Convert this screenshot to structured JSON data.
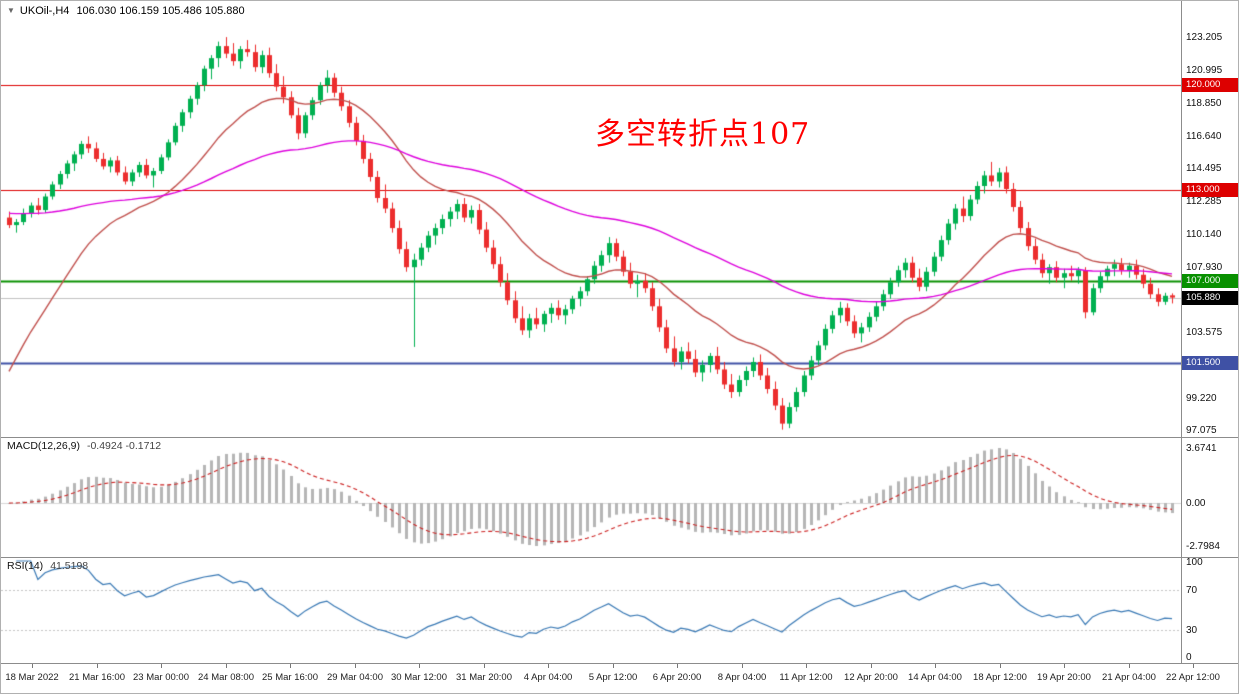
{
  "icons": {
    "collapse": "▼"
  },
  "chart_data": {
    "type": "candlestick",
    "title": "UKOil-,H4",
    "ohlc_label": "106.030 106.159 105.486 105.880",
    "ohlc_current": {
      "open": 106.03,
      "high": 106.159,
      "low": 105.486,
      "close": 105.88
    },
    "ylim": [
      96.61,
      125.6
    ],
    "up_color": "#00b050",
    "down_color": "#ec2d2d",
    "y_tick_labels": [
      "123.205",
      "120.995",
      "118.850",
      "116.640",
      "114.495",
      "112.285",
      "110.140",
      "107.930",
      "103.575",
      "99.220",
      "97.075"
    ],
    "x_tick_labels": [
      "18 Mar 2022",
      "21 Mar 16:00",
      "23 Mar 00:00",
      "24 Mar 08:00",
      "25 Mar 16:00",
      "29 Mar 04:00",
      "30 Mar 12:00",
      "31 Mar 20:00",
      "4 Apr 04:00",
      "5 Apr 12:00",
      "6 Apr 20:00",
      "8 Apr 04:00",
      "11 Apr 12:00",
      "12 Apr 20:00",
      "14 Apr 04:00",
      "18 Apr 12:00",
      "19 Apr 20:00",
      "21 Apr 04:00",
      "22 Apr 12:00"
    ],
    "horizontal_lines": [
      {
        "price": 120.0,
        "label": "120.000",
        "color": "#dd0000",
        "width": 1
      },
      {
        "price": 113.0,
        "label": "113.000",
        "color": "#dd0000",
        "width": 1
      },
      {
        "price": 107.0,
        "label": "107.000",
        "color": "#089000",
        "width": 2
      },
      {
        "price": 101.5,
        "label": "101.500",
        "color": "#3f51a5",
        "width": 2
      }
    ],
    "current_price": {
      "price": 105.88,
      "label": "105.880",
      "color": "#000000"
    },
    "moving_averages": [
      {
        "name": "fast-ma",
        "period": 21,
        "seed": 100.0,
        "color": "#c0504d"
      },
      {
        "name": "slow-ma",
        "period": 72,
        "seed": 111.5,
        "color": "#dd00dd"
      }
    ],
    "annotation": {
      "text": "多空转折点107",
      "color": "#ff0000"
    },
    "indicators": [
      {
        "type": "MACD",
        "label": "MACD(12,26,9)",
        "values_label": "-0.4924 -0.1712",
        "fast": 12,
        "slow": 26,
        "signal": 9,
        "hist_color": "#b6b6b6",
        "signal_color": "#cc2222",
        "y_tick_labels": [
          {
            "v": 3.6741,
            "label": "3.6741"
          },
          {
            "v": 0,
            "label": "0.00"
          },
          {
            "v": -2.7984,
            "label": "-2.7984"
          }
        ]
      },
      {
        "type": "RSI",
        "label": "RSI(14)",
        "value_label": "41.5198",
        "period": 14,
        "levels": [
          70,
          30
        ],
        "line_color": "#3878b4",
        "y_tick_labels": [
          {
            "v": 100,
            "label": "100"
          },
          {
            "v": 70,
            "label": "70"
          },
          {
            "v": 30,
            "label": "30"
          },
          {
            "v": 0,
            "label": "0"
          }
        ]
      }
    ],
    "candles": [
      [
        111.2,
        111.6,
        110.5,
        110.7
      ],
      [
        110.7,
        111.1,
        110.2,
        110.9
      ],
      [
        110.9,
        111.8,
        110.7,
        111.5
      ],
      [
        111.5,
        112.2,
        111.2,
        112.0
      ],
      [
        112.0,
        112.5,
        111.4,
        111.7
      ],
      [
        111.7,
        112.8,
        111.5,
        112.6
      ],
      [
        112.6,
        113.6,
        112.4,
        113.4
      ],
      [
        113.4,
        114.3,
        113.1,
        114.1
      ],
      [
        114.1,
        115.0,
        113.8,
        114.8
      ],
      [
        114.8,
        115.6,
        114.3,
        115.4
      ],
      [
        115.4,
        116.3,
        115.1,
        116.1
      ],
      [
        116.1,
        116.6,
        115.5,
        115.8
      ],
      [
        115.8,
        116.2,
        114.9,
        115.1
      ],
      [
        115.1,
        115.5,
        114.4,
        114.6
      ],
      [
        114.6,
        115.2,
        114.2,
        115.0
      ],
      [
        115.0,
        115.3,
        114.0,
        114.2
      ],
      [
        114.2,
        114.6,
        113.4,
        113.6
      ],
      [
        113.6,
        114.4,
        113.3,
        114.2
      ],
      [
        114.2,
        114.9,
        113.9,
        114.7
      ],
      [
        114.7,
        115.1,
        113.8,
        114.0
      ],
      [
        114.0,
        114.5,
        113.2,
        114.3
      ],
      [
        114.3,
        115.4,
        114.1,
        115.2
      ],
      [
        115.2,
        116.4,
        115.0,
        116.2
      ],
      [
        116.2,
        117.5,
        116.0,
        117.3
      ],
      [
        117.3,
        118.4,
        116.9,
        118.2
      ],
      [
        118.2,
        119.3,
        117.8,
        119.1
      ],
      [
        119.1,
        120.2,
        118.7,
        120.0
      ],
      [
        120.0,
        121.3,
        119.6,
        121.1
      ],
      [
        121.1,
        122.0,
        120.4,
        121.8
      ],
      [
        121.8,
        122.9,
        121.2,
        122.6
      ],
      [
        122.6,
        123.2,
        121.8,
        122.1
      ],
      [
        122.1,
        122.8,
        121.3,
        121.6
      ],
      [
        121.6,
        122.6,
        121.1,
        122.4
      ],
      [
        122.4,
        123.0,
        121.9,
        122.2
      ],
      [
        122.2,
        122.7,
        120.9,
        121.2
      ],
      [
        121.2,
        122.3,
        120.8,
        122.0
      ],
      [
        122.0,
        122.5,
        120.5,
        120.8
      ],
      [
        120.8,
        121.4,
        119.6,
        119.9
      ],
      [
        119.9,
        120.6,
        118.8,
        119.2
      ],
      [
        119.2,
        119.6,
        117.8,
        118.0
      ],
      [
        118.0,
        118.5,
        116.4,
        116.8
      ],
      [
        116.8,
        118.2,
        116.5,
        118.0
      ],
      [
        118.0,
        119.2,
        117.7,
        119.0
      ],
      [
        119.0,
        120.2,
        118.7,
        120.0
      ],
      [
        120.0,
        121.0,
        119.5,
        120.5
      ],
      [
        120.5,
        120.8,
        119.2,
        119.5
      ],
      [
        119.5,
        119.9,
        118.3,
        118.6
      ],
      [
        118.6,
        119.0,
        117.2,
        117.5
      ],
      [
        117.5,
        117.9,
        116.0,
        116.3
      ],
      [
        116.3,
        116.7,
        114.8,
        115.1
      ],
      [
        115.1,
        115.5,
        113.6,
        113.9
      ],
      [
        113.9,
        114.3,
        112.2,
        112.5
      ],
      [
        112.5,
        113.4,
        111.5,
        111.8
      ],
      [
        111.8,
        112.2,
        110.2,
        110.5
      ],
      [
        110.5,
        111.0,
        108.8,
        109.1
      ],
      [
        109.1,
        109.6,
        107.6,
        107.9
      ],
      [
        107.9,
        108.8,
        102.6,
        108.4
      ],
      [
        108.4,
        109.5,
        108.0,
        109.2
      ],
      [
        109.2,
        110.3,
        108.9,
        110.0
      ],
      [
        110.0,
        110.8,
        109.4,
        110.5
      ],
      [
        110.5,
        111.4,
        110.1,
        111.1
      ],
      [
        111.1,
        111.9,
        110.6,
        111.6
      ],
      [
        111.6,
        112.4,
        111.1,
        112.1
      ],
      [
        112.1,
        112.5,
        110.9,
        111.2
      ],
      [
        111.2,
        112.0,
        110.8,
        111.7
      ],
      [
        111.7,
        112.1,
        110.1,
        110.4
      ],
      [
        110.4,
        110.9,
        108.9,
        109.2
      ],
      [
        109.2,
        109.7,
        107.8,
        108.1
      ],
      [
        108.1,
        108.6,
        106.6,
        106.9
      ],
      [
        106.9,
        107.5,
        105.4,
        105.7
      ],
      [
        105.7,
        106.3,
        104.2,
        104.5
      ],
      [
        104.5,
        105.3,
        103.4,
        103.7
      ],
      [
        103.7,
        104.8,
        103.2,
        104.5
      ],
      [
        104.5,
        105.2,
        103.8,
        104.1
      ],
      [
        104.1,
        105.0,
        103.6,
        104.8
      ],
      [
        104.8,
        105.5,
        104.2,
        105.2
      ],
      [
        105.2,
        105.7,
        104.4,
        104.7
      ],
      [
        104.7,
        105.4,
        104.1,
        105.1
      ],
      [
        105.1,
        106.0,
        104.8,
        105.8
      ],
      [
        105.8,
        106.6,
        105.3,
        106.3
      ],
      [
        106.3,
        107.3,
        106.0,
        107.1
      ],
      [
        107.1,
        108.3,
        106.8,
        108.0
      ],
      [
        108.0,
        109.0,
        107.6,
        108.7
      ],
      [
        108.7,
        109.9,
        108.2,
        109.5
      ],
      [
        109.5,
        109.8,
        108.3,
        108.6
      ],
      [
        108.6,
        109.0,
        107.3,
        107.6
      ],
      [
        107.6,
        108.2,
        106.5,
        106.8
      ],
      [
        106.8,
        107.4,
        105.9,
        107.0
      ],
      [
        107.0,
        107.5,
        106.2,
        106.5
      ],
      [
        106.5,
        106.9,
        105.0,
        105.3
      ],
      [
        105.3,
        105.8,
        103.6,
        103.9
      ],
      [
        103.9,
        104.4,
        102.2,
        102.5
      ],
      [
        102.5,
        103.3,
        101.3,
        101.6
      ],
      [
        101.6,
        102.6,
        101.1,
        102.3
      ],
      [
        102.3,
        102.9,
        101.5,
        101.8
      ],
      [
        101.8,
        102.4,
        100.6,
        100.9
      ],
      [
        100.9,
        101.7,
        100.3,
        101.4
      ],
      [
        101.4,
        102.2,
        100.9,
        102.0
      ],
      [
        102.0,
        102.6,
        100.8,
        101.1
      ],
      [
        101.1,
        101.6,
        99.8,
        100.1
      ],
      [
        100.1,
        100.8,
        99.2,
        99.6
      ],
      [
        99.6,
        100.7,
        99.3,
        100.4
      ],
      [
        100.4,
        101.3,
        100.0,
        101.0
      ],
      [
        101.0,
        101.9,
        100.6,
        101.6
      ],
      [
        101.6,
        102.1,
        100.4,
        100.7
      ],
      [
        100.7,
        101.2,
        99.5,
        99.8
      ],
      [
        99.8,
        100.3,
        98.4,
        98.7
      ],
      [
        98.7,
        99.2,
        97.1,
        97.5
      ],
      [
        97.5,
        98.9,
        97.2,
        98.6
      ],
      [
        98.6,
        99.9,
        98.3,
        99.6
      ],
      [
        99.6,
        101.0,
        99.3,
        100.7
      ],
      [
        100.7,
        102.0,
        100.4,
        101.7
      ],
      [
        101.7,
        103.0,
        101.4,
        102.7
      ],
      [
        102.7,
        104.1,
        102.4,
        103.8
      ],
      [
        103.8,
        105.0,
        103.5,
        104.7
      ],
      [
        104.7,
        105.6,
        104.2,
        105.2
      ],
      [
        105.2,
        105.5,
        104.0,
        104.3
      ],
      [
        104.3,
        104.7,
        103.2,
        103.5
      ],
      [
        103.5,
        104.2,
        102.9,
        103.9
      ],
      [
        103.9,
        104.9,
        103.6,
        104.6
      ],
      [
        104.6,
        105.6,
        104.3,
        105.3
      ],
      [
        105.3,
        106.4,
        105.0,
        106.1
      ],
      [
        106.1,
        107.2,
        105.8,
        106.9
      ],
      [
        106.9,
        108.0,
        106.6,
        107.7
      ],
      [
        107.7,
        108.5,
        107.2,
        108.2
      ],
      [
        108.2,
        108.6,
        106.9,
        107.2
      ],
      [
        107.2,
        107.8,
        106.3,
        106.6
      ],
      [
        106.6,
        107.9,
        106.3,
        107.6
      ],
      [
        107.6,
        108.9,
        107.3,
        108.6
      ],
      [
        108.6,
        110.0,
        108.3,
        109.7
      ],
      [
        109.7,
        111.1,
        109.4,
        110.8
      ],
      [
        110.8,
        112.1,
        110.4,
        111.8
      ],
      [
        111.8,
        112.6,
        110.9,
        111.3
      ],
      [
        111.3,
        112.7,
        111.0,
        112.4
      ],
      [
        112.4,
        113.6,
        112.1,
        113.3
      ],
      [
        113.3,
        114.3,
        112.8,
        114.0
      ],
      [
        114.0,
        114.9,
        113.3,
        113.6
      ],
      [
        113.6,
        114.5,
        113.2,
        114.2
      ],
      [
        114.2,
        114.6,
        112.8,
        113.1
      ],
      [
        113.1,
        113.5,
        111.6,
        111.9
      ],
      [
        111.9,
        112.3,
        110.2,
        110.5
      ],
      [
        110.5,
        110.9,
        109.0,
        109.3
      ],
      [
        109.3,
        109.8,
        108.1,
        108.4
      ],
      [
        108.4,
        108.8,
        107.2,
        107.5
      ],
      [
        107.5,
        108.1,
        106.8,
        107.9
      ],
      [
        107.9,
        108.3,
        106.9,
        107.2
      ],
      [
        107.2,
        107.8,
        106.5,
        107.5
      ],
      [
        107.5,
        108.0,
        107.0,
        107.3
      ],
      [
        107.3,
        107.9,
        106.8,
        107.7
      ],
      [
        107.7,
        107.9,
        104.5,
        104.9
      ],
      [
        104.9,
        106.8,
        104.7,
        106.5
      ],
      [
        106.5,
        107.6,
        106.2,
        107.3
      ],
      [
        107.3,
        108.0,
        107.0,
        107.8
      ],
      [
        107.8,
        108.4,
        107.3,
        108.1
      ],
      [
        108.1,
        108.5,
        107.4,
        107.7
      ],
      [
        107.7,
        108.2,
        107.2,
        108.0
      ],
      [
        108.0,
        108.4,
        107.1,
        107.4
      ],
      [
        107.4,
        107.8,
        106.5,
        106.8
      ],
      [
        106.8,
        107.2,
        105.8,
        106.1
      ],
      [
        106.1,
        106.5,
        105.3,
        105.6
      ],
      [
        105.6,
        106.2,
        105.4,
        106.0
      ],
      [
        106.03,
        106.16,
        105.49,
        105.88
      ]
    ]
  }
}
